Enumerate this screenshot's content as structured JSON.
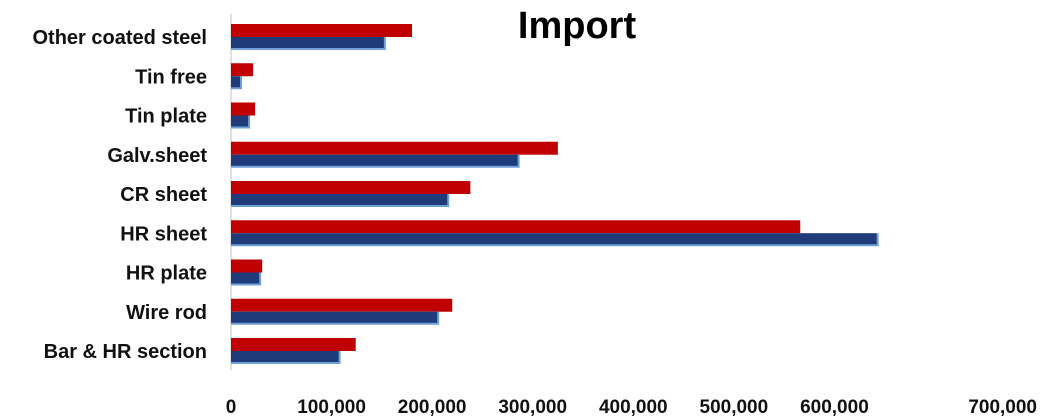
{
  "chart_data": {
    "type": "bar",
    "orientation": "horizontal",
    "title": "Import",
    "categories": [
      "Bar & HR section",
      "Wire rod",
      "HR plate",
      "HR sheet",
      "CR sheet",
      "Galv.sheet",
      "Tin plate",
      "Tin free",
      "Other coated steel"
    ],
    "series": [
      {
        "color": "#c00000",
        "values": [
          124000,
          220000,
          31000,
          566000,
          238000,
          325000,
          24000,
          22000,
          180000
        ]
      },
      {
        "color": "#1f3b7a",
        "values": [
          107000,
          205000,
          28000,
          642000,
          215000,
          285000,
          17000,
          9000,
          152000
        ]
      }
    ],
    "xlim": [
      0,
      700000
    ],
    "xticks": [
      "0",
      "100,000",
      "200,000",
      "300,000",
      "400,000",
      "500,000",
      "600,000",
      "700,000"
    ],
    "xtick_values": [
      0,
      100000,
      200000,
      300000,
      400000,
      500000,
      600000,
      700000
    ],
    "grid": false,
    "legend": "none"
  }
}
